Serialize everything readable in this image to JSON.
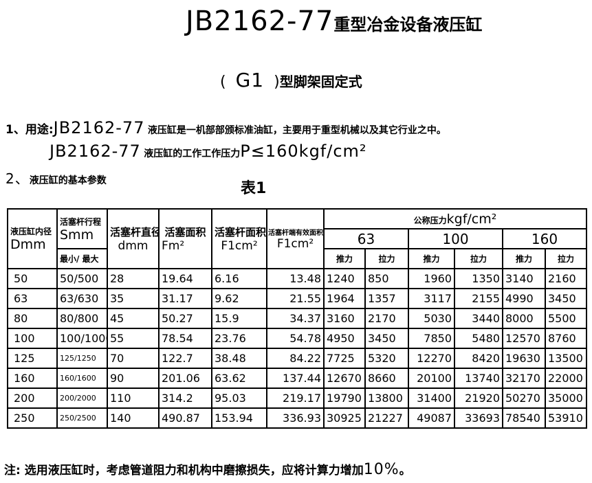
{
  "title": {
    "code": "JB2162-77",
    "text": "重型冶金设备液压缸"
  },
  "subtitle": {
    "open": "(",
    "model": "G1",
    "close": ")",
    "text": "型脚架固定式"
  },
  "section1": {
    "prefix": "1、用途:",
    "code": "JB2162-77",
    "text": "液压缸是一机部部颁标准油缸，主要用于重型机械以及其它行业之中。"
  },
  "section1b": {
    "code": "JB2162-77",
    "text": "液压缸的工作工作压力",
    "formula": "P≤160kgf/cm²"
  },
  "section2": {
    "prefix": "2、",
    "text": "液压缸的基本参数"
  },
  "table_label": "表1",
  "table": {
    "headers": {
      "bore": {
        "label": "液压缸内径",
        "unit": "Dmm"
      },
      "stroke": {
        "label": "活塞杆行程",
        "unit": "Smm",
        "sub": "最小/ 最大"
      },
      "rod_dia": {
        "label": "活塞杆直径",
        "unit": "dmm"
      },
      "piston_area": {
        "label": "活塞面积",
        "unit": "Fm²"
      },
      "rod_area": {
        "label": "活塞杆面积",
        "unit": "F1cm²"
      },
      "rod_end_area": {
        "label": "活塞杆端有效面积",
        "unit": "F1cm²"
      },
      "pressure": {
        "label": "公称压力",
        "unit": "kgf/cm²",
        "levels": [
          "63",
          "100",
          "160"
        ],
        "push": "推力",
        "pull": "拉力"
      }
    },
    "rows": [
      [
        "50",
        "50/500",
        "28",
        "19.64",
        "6.16",
        "13.48",
        "1240",
        "850",
        "1960",
        "1350",
        "3140",
        "2160"
      ],
      [
        "63",
        "63/630",
        "35",
        "31.17",
        "9.62",
        "21.55",
        "1964",
        "1357",
        "3117",
        "2155",
        "4990",
        "3450"
      ],
      [
        "80",
        "80/800",
        "45",
        "50.27",
        "15.9",
        "34.37",
        "3160",
        "2170",
        "5030",
        "3440",
        "8000",
        "5500"
      ],
      [
        "100",
        "100/1000",
        "55",
        "78.54",
        "23.76",
        "54.78",
        "4950",
        "3450",
        "7850",
        "5480",
        "12570",
        "8760"
      ],
      [
        "125",
        "125/1250",
        "70",
        "122.7",
        "38.48",
        "84.22",
        "7725",
        "5320",
        "12270",
        "8420",
        "19630",
        "13500"
      ],
      [
        "160",
        "160/1600",
        "90",
        "201.06",
        "63.62",
        "137.44",
        "12670",
        "8660",
        "20100",
        "13740",
        "32170",
        "22000"
      ],
      [
        "200",
        "200/2000",
        "110",
        "314.2",
        "95.03",
        "219.17",
        "19790",
        "13800",
        "31400",
        "21920",
        "50270",
        "35000"
      ],
      [
        "250",
        "250/2500",
        "140",
        "490.87",
        "153.94",
        "336.93",
        "30925",
        "21227",
        "49087",
        "33693",
        "78540",
        "53910"
      ]
    ]
  },
  "note": {
    "text": "注: 选用液压缸时，考虑管道阻力和机构中磨擦损失，应将计算力增加",
    "value": "10%",
    "end": "。"
  }
}
